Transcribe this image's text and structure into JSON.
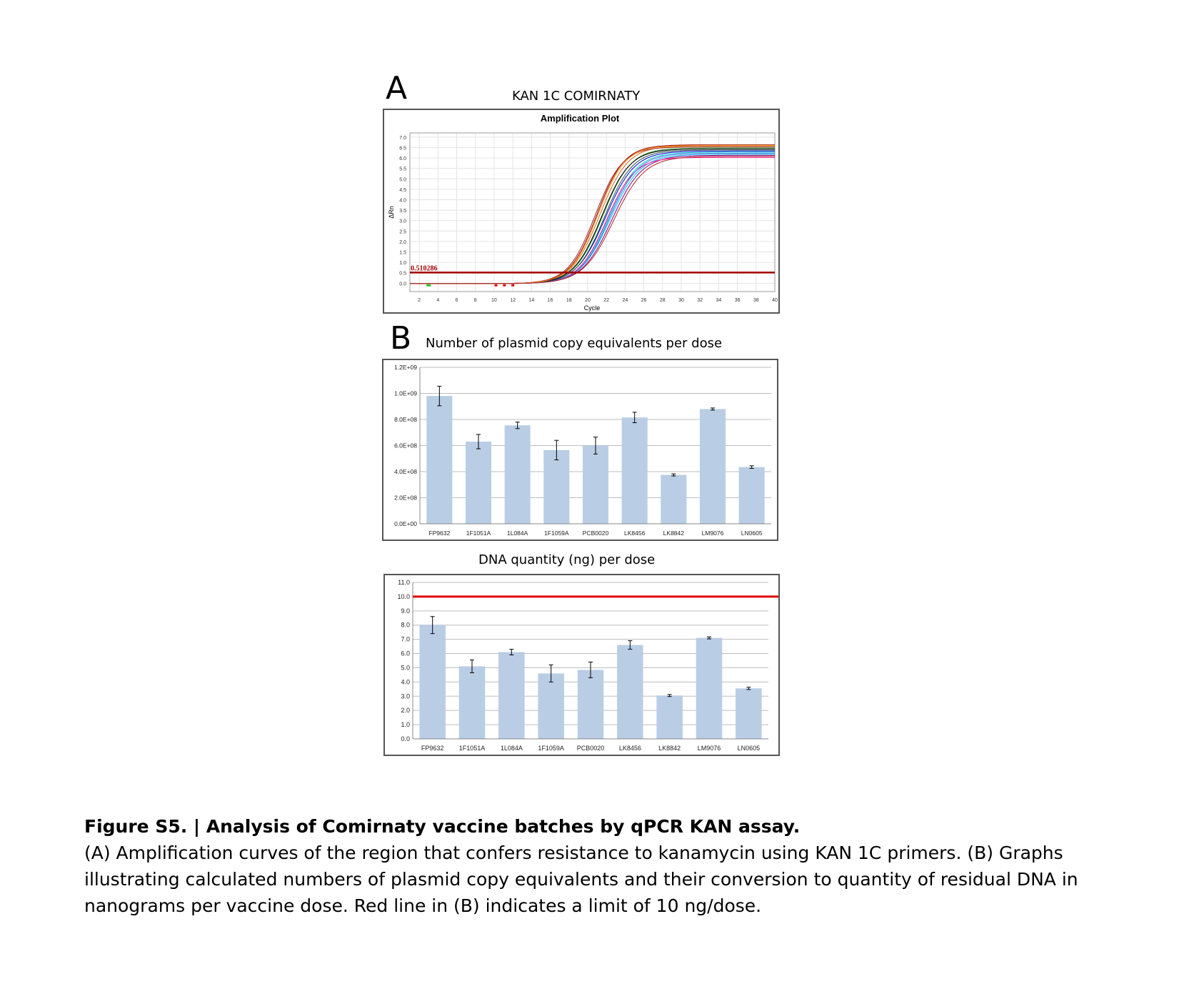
{
  "panel_a": {
    "letter": "A",
    "title": "KAN 1C COMIRNATY"
  },
  "panel_b": {
    "letter": "B",
    "title": "Number of plasmid copy equivalents per dose"
  },
  "panel_c": {
    "title": "DNA quantity (ng) per dose"
  },
  "caption": {
    "title": "Figure S5. | Analysis of Comirnaty vaccine batches by qPCR KAN assay.",
    "body": "(A) Amplification curves of the region that confers resistance to kanamycin using KAN 1C primers. (B) Graphs illustrating calculated numbers of plasmid copy equivalents and their conversion to quantity of residual DNA in nanograms per vaccine dose. Red line in (B) indicates a limit of 10 ng/dose."
  },
  "chart_data": [
    {
      "type": "line",
      "title": "Amplification Plot",
      "xlabel": "Cycle",
      "ylabel": "ΔRn",
      "xlim": [
        1,
        40
      ],
      "ylim": [
        -0.4,
        7.2
      ],
      "xticks": [
        "2",
        "4",
        "6",
        "8",
        "10",
        "12",
        "14",
        "16",
        "18",
        "20",
        "22",
        "24",
        "26",
        "28",
        "30",
        "32",
        "34",
        "36",
        "38",
        "40"
      ],
      "yticks": [
        "7.0",
        "6.5",
        "6.0",
        "5.5",
        "5.0",
        "4.5",
        "4.0",
        "3.5",
        "3.0",
        "2.5",
        "2.0",
        "1.5",
        "1.0",
        "0.5",
        "0.0"
      ],
      "threshold": 0.510286,
      "threshold_label": "0.510286",
      "threshold_color": "#a00000",
      "curves": [
        {
          "color": "#8b0000",
          "plateau": 6.65,
          "midpoint": 21.0,
          "slope": 1.45
        },
        {
          "color": "#d2691e",
          "plateau": 6.6,
          "midpoint": 21.3,
          "slope": 1.5
        },
        {
          "color": "#228b22",
          "plateau": 6.5,
          "midpoint": 21.6,
          "slope": 1.5
        },
        {
          "color": "#000000",
          "plateau": 6.45,
          "midpoint": 21.5,
          "slope": 1.5
        },
        {
          "color": "#0000cd",
          "plateau": 6.35,
          "midpoint": 21.9,
          "slope": 1.55
        },
        {
          "color": "#00ced1",
          "plateau": 6.3,
          "midpoint": 22.2,
          "slope": 1.55
        },
        {
          "color": "#00bfff",
          "plateau": 6.2,
          "midpoint": 22.4,
          "slope": 1.6
        },
        {
          "color": "#800080",
          "plateau": 6.15,
          "midpoint": 22.6,
          "slope": 1.6
        },
        {
          "color": "#ff1493",
          "plateau": 6.05,
          "midpoint": 22.0,
          "slope": 1.5
        },
        {
          "color": "#a52a2a",
          "plateau": 6.55,
          "midpoint": 20.8,
          "slope": 1.45
        },
        {
          "color": "#2f4f4f",
          "plateau": 6.4,
          "midpoint": 21.8,
          "slope": 1.5
        },
        {
          "color": "#4169e1",
          "plateau": 6.25,
          "midpoint": 22.3,
          "slope": 1.55
        },
        {
          "color": "#ff8c00",
          "plateau": 6.62,
          "midpoint": 21.1,
          "slope": 1.45
        },
        {
          "color": "#b22222",
          "plateau": 6.1,
          "midpoint": 22.8,
          "slope": 1.65
        }
      ]
    },
    {
      "type": "bar",
      "title": "Number of plasmid copy equivalents per dose",
      "categories": [
        "FP9632",
        "1F1051A",
        "1L084A",
        "1F1059A",
        "PCB0020",
        "LK8456",
        "LK8842",
        "LM9076",
        "LN0605"
      ],
      "values": [
        980000000.0,
        630000000.0,
        755000000.0,
        565000000.0,
        600000000.0,
        815000000.0,
        375000000.0,
        880000000.0,
        435000000.0
      ],
      "errors": [
        75000000.0,
        55000000.0,
        25000000.0,
        75000000.0,
        65000000.0,
        40000000.0,
        8000000.0,
        8000000.0,
        10000000.0
      ],
      "ylim": [
        0,
        1200000000.0
      ],
      "yticks": [
        0,
        200000000.0,
        400000000.0,
        600000000.0,
        800000000.0,
        1000000000.0,
        1200000000.0
      ],
      "ytick_labels": [
        "0.0E+00",
        "2.0E+08",
        "4.0E+08",
        "6.0E+08",
        "8.0E+08",
        "1.0E+09",
        "1.2E+09"
      ],
      "bar_color": "#b9cde5"
    },
    {
      "type": "bar",
      "title": "DNA quantity (ng) per dose",
      "categories": [
        "FP9632",
        "1F1051A",
        "1L084A",
        "1F1059A",
        "PCB0020",
        "LK8456",
        "LK8842",
        "LM9076",
        "LN0605"
      ],
      "values": [
        8.0,
        5.1,
        6.1,
        4.6,
        4.85,
        6.6,
        3.05,
        7.1,
        3.55
      ],
      "errors": [
        0.6,
        0.45,
        0.2,
        0.6,
        0.55,
        0.3,
        0.07,
        0.07,
        0.08
      ],
      "ylim": [
        0,
        11
      ],
      "yticks": [
        0,
        1,
        2,
        3,
        4,
        5,
        6,
        7,
        8,
        9,
        10,
        11
      ],
      "ytick_labels": [
        "0.0",
        "1.0",
        "2.0",
        "3.0",
        "4.0",
        "5.0",
        "6.0",
        "7.0",
        "8.0",
        "9.0",
        "10.0",
        "11.0"
      ],
      "limit_line": 10,
      "limit_color": "#e00000",
      "bar_color": "#b9cde5"
    }
  ]
}
